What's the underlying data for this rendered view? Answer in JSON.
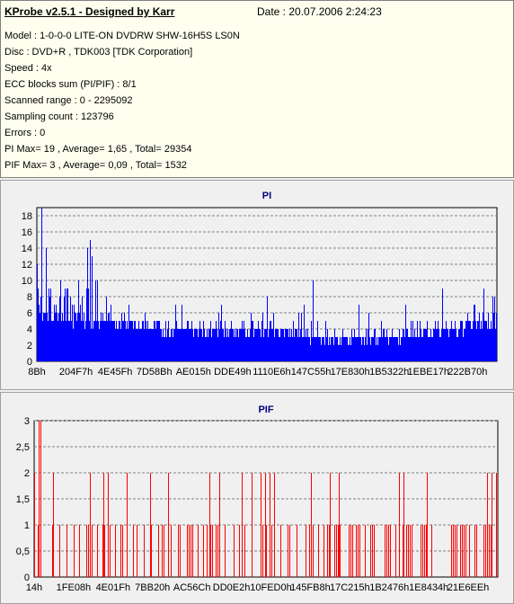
{
  "header": {
    "title": "KProbe v2.5.1 - Designed by Karr",
    "date": "Date : 20.07.2006 2:24:23",
    "lines": [
      "Model : 1-0-0-0 LITE-ON DVDRW SHW-16H5S  LS0N",
      "Disc : DVD+R , TDK003 [TDK Corporation]",
      "Speed : 4x",
      "ECC blocks sum (PI/PIF) : 8/1",
      "Scanned range : 0 - 2295092",
      "Sampling count : 123796",
      "Errors : 0",
      "PI Max= 19 , Average= 1,65 , Total= 29354",
      "PIF Max= 3 , Average= 0,09 , Total= 1532"
    ]
  },
  "colors": {
    "pi": "#0000ff",
    "pif": "#ff0000",
    "title": "#000080",
    "grid": "#808080"
  },
  "chart_data": [
    {
      "type": "bar",
      "title": "PI",
      "ylim": [
        0,
        19
      ],
      "yticks": [
        "0",
        "2",
        "4",
        "6",
        "8",
        "10",
        "12",
        "14",
        "16",
        "18"
      ],
      "xticks": [
        "8Bh",
        "204F7h",
        "4E45Fh",
        "7D58Bh",
        "AE015h",
        "DDE49h",
        "1110E6h",
        "147C55h",
        "17E830h",
        "1B5322h",
        "1EBE17h",
        "222B70h"
      ],
      "grid": true,
      "peaks": [
        [
          0.0,
          12
        ],
        [
          0.01,
          19
        ],
        [
          0.02,
          14
        ],
        [
          0.03,
          9
        ],
        [
          0.05,
          10
        ],
        [
          0.06,
          8
        ],
        [
          0.09,
          10
        ],
        [
          0.11,
          14
        ],
        [
          0.115,
          15
        ],
        [
          0.12,
          13
        ],
        [
          0.13,
          10
        ],
        [
          0.15,
          8
        ],
        [
          0.2,
          7
        ],
        [
          0.3,
          7
        ],
        [
          0.4,
          7
        ],
        [
          0.5,
          8
        ],
        [
          0.58,
          7
        ],
        [
          0.6,
          10
        ],
        [
          0.7,
          7
        ],
        [
          0.8,
          7
        ],
        [
          0.88,
          9
        ],
        [
          0.95,
          7
        ],
        [
          0.97,
          9
        ],
        [
          0.99,
          8
        ]
      ],
      "base_max": [
        [
          0.0,
          6
        ],
        [
          0.15,
          5
        ],
        [
          0.3,
          4
        ],
        [
          0.5,
          4
        ],
        [
          0.6,
          3
        ],
        [
          0.8,
          3
        ],
        [
          0.9,
          4
        ],
        [
          1.0,
          5
        ]
      ]
    },
    {
      "type": "bar",
      "title": "PIF",
      "ylim": [
        0,
        3
      ],
      "yticks": [
        "0",
        "0,5",
        "1",
        "1,5",
        "2",
        "2,5",
        "3"
      ],
      "xticks": [
        "14h",
        "1FE08h",
        "4E01Fh",
        "7BB20h",
        "AC56Ch",
        "DD0E2h",
        "10FED0h",
        "145FB8h",
        "17C215h",
        "1B2476h",
        "1E8434h",
        "21E6EEh"
      ],
      "grid": true,
      "spikes_3": [
        0.01
      ],
      "spikes_2": [
        0.0,
        0.04,
        0.12,
        0.15,
        0.16,
        0.2,
        0.25,
        0.29,
        0.38,
        0.4,
        0.45,
        0.47,
        0.49,
        0.5,
        0.51,
        0.52,
        0.6,
        0.64,
        0.66,
        0.79,
        0.8,
        0.85,
        0.98,
        0.99,
        1.0
      ],
      "spikes_1_density": 0.35
    }
  ]
}
